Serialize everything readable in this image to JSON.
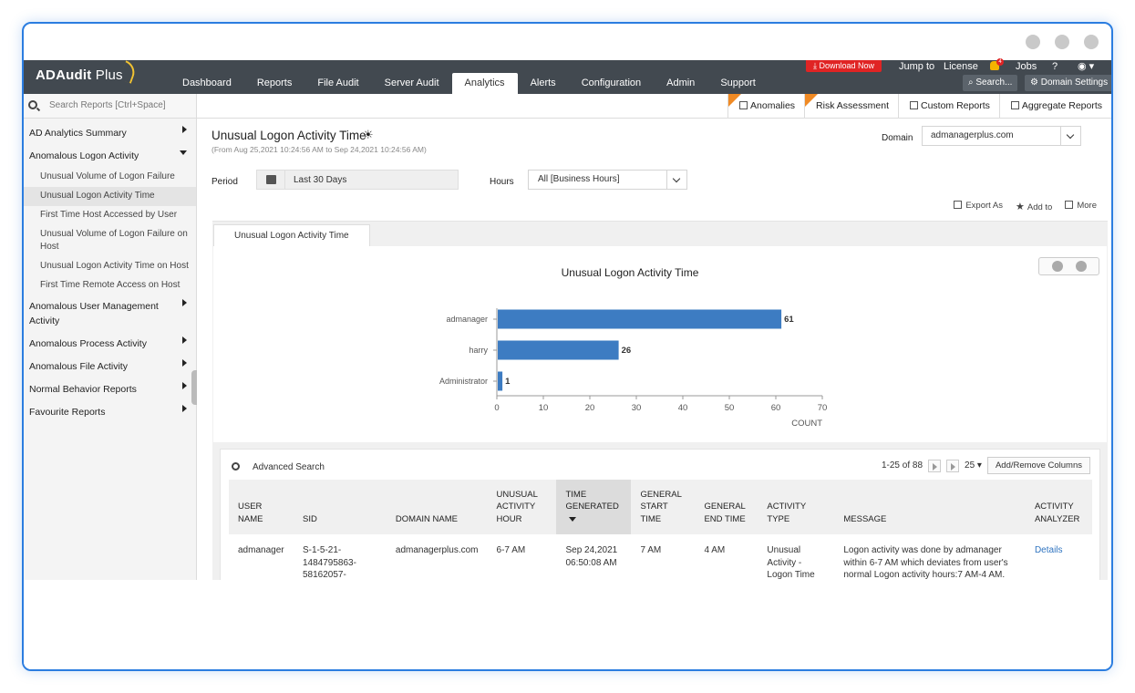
{
  "app": {
    "logo": "ADAudit",
    "logo_plus": "Plus"
  },
  "nav": [
    "Dashboard",
    "Reports",
    "File Audit",
    "Server Audit",
    "Analytics",
    "Alerts",
    "Configuration",
    "Admin",
    "Support"
  ],
  "nav_active": "Analytics",
  "top_right": {
    "download": "Download Now",
    "jump_to": "Jump to",
    "license": "License",
    "notif_count": "4",
    "jobs": "Jobs",
    "help": "?",
    "search": "Search...",
    "domain_settings": "Domain Settings"
  },
  "search_reports_placeholder": "Search Reports [Ctrl+Space]",
  "report_tabs": [
    "Anomalies",
    "Risk Assessment",
    "Custom Reports",
    "Aggregate Reports"
  ],
  "sidebar": {
    "items": [
      {
        "label": "AD Analytics Summary"
      },
      {
        "label": "Anomalous Logon Activity",
        "children": [
          "Unusual Volume of Logon Failure",
          "Unusual Logon Activity Time",
          "First Time Host Accessed by User",
          "Unusual Volume of Logon Failure on Host",
          "Unusual Logon Activity Time on Host",
          "First Time Remote Access on Host"
        ]
      },
      {
        "label": "Anomalous User Management Activity"
      },
      {
        "label": "Anomalous Process Activity"
      },
      {
        "label": "Anomalous File Activity"
      },
      {
        "label": "Normal Behavior Reports"
      },
      {
        "label": "Favourite Reports"
      }
    ],
    "active_child": "Unusual Logon Activity Time"
  },
  "page": {
    "title": "Unusual Logon Activity Time",
    "range": "(From Aug 25,2021 10:24:56 AM to Sep 24,2021 10:24:56 AM)",
    "domain_label": "Domain",
    "domain_value": "admanagerplus.com",
    "period_label": "Period",
    "period_value": "Last 30 Days",
    "hours_label": "Hours",
    "hours_value": "All [Business Hours]",
    "actions": {
      "export": "Export As",
      "add": "Add to",
      "more": "More"
    },
    "tab": "Unusual Logon Activity Time"
  },
  "chart_data": {
    "type": "bar",
    "orientation": "horizontal",
    "title": "Unusual Logon Activity Time",
    "categories": [
      "admanager",
      "harry",
      "Administrator"
    ],
    "values": [
      61,
      26,
      1
    ],
    "xlabel": "COUNT",
    "xlim": [
      0,
      70
    ],
    "ticks": [
      0,
      10,
      20,
      30,
      40,
      50,
      60,
      70
    ],
    "bar_color": "#3d7cc2"
  },
  "table": {
    "advanced_search": "Advanced Search",
    "pagination": "1-25 of 88",
    "page_size": "25",
    "add_remove_columns": "Add/Remove Columns",
    "headers": [
      "USER NAME",
      "SID",
      "DOMAIN NAME",
      "UNUSUAL ACTIVITY HOUR",
      "TIME GENERATED",
      "GENERAL START TIME",
      "GENERAL END TIME",
      "ACTIVITY TYPE",
      "MESSAGE",
      "ACTIVITY ANALYZER"
    ],
    "rows": [
      [
        "admanager",
        "S-1-5-21-1484795863-58162057-",
        "admanagerplus.com",
        "6-7 AM",
        "Sep 24,2021 06:50:08 AM",
        "7 AM",
        "4 AM",
        "Unusual Activity - Logon Time",
        "Logon activity was done by admanager within 6-7 AM which deviates from user's normal Logon activity hours:7 AM-4 AM.",
        "Details"
      ]
    ]
  }
}
